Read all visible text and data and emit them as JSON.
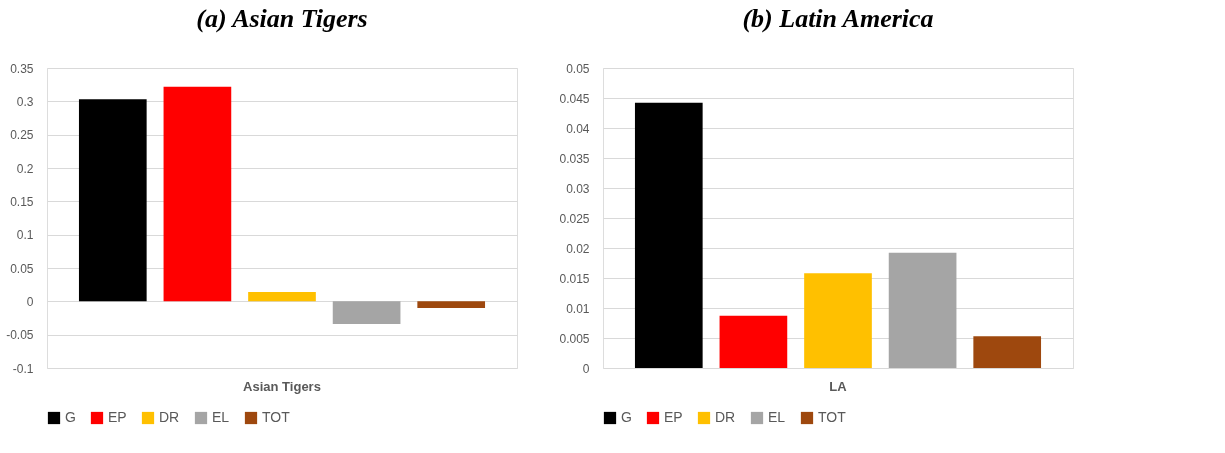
{
  "chart_data": [
    {
      "type": "bar",
      "title": "(a) Asian Tigers",
      "categories": [
        "Asian Tigers"
      ],
      "ylim": [
        -0.1,
        0.35
      ],
      "yticks": [
        -0.1,
        -0.05,
        0,
        0.05,
        0.1,
        0.15,
        0.2,
        0.25,
        0.3,
        0.35
      ],
      "grid": "y",
      "legend": "bottom",
      "series": [
        {
          "name": "G",
          "color": "#000000",
          "values": [
            0.303
          ]
        },
        {
          "name": "EP",
          "color": "#ff0000",
          "values": [
            0.322
          ]
        },
        {
          "name": "DR",
          "color": "#ffc000",
          "values": [
            0.014
          ]
        },
        {
          "name": "EL",
          "color": "#a5a5a5",
          "values": [
            -0.034
          ]
        },
        {
          "name": "TOT",
          "color": "#9e480e",
          "values": [
            -0.01
          ]
        }
      ]
    },
    {
      "type": "bar",
      "title": "(b) Latin America",
      "categories": [
        "LA"
      ],
      "ylim": [
        0,
        0.05
      ],
      "yticks": [
        0,
        0.005,
        0.01,
        0.015,
        0.02,
        0.025,
        0.03,
        0.035,
        0.04,
        0.045,
        0.05
      ],
      "grid": "y",
      "legend": "bottom",
      "series": [
        {
          "name": "G",
          "color": "#000000",
          "values": [
            0.0442
          ]
        },
        {
          "name": "EP",
          "color": "#ff0000",
          "values": [
            0.0087
          ]
        },
        {
          "name": "DR",
          "color": "#ffc000",
          "values": [
            0.0158
          ]
        },
        {
          "name": "EL",
          "color": "#a5a5a5",
          "values": [
            0.0192
          ]
        },
        {
          "name": "TOT",
          "color": "#9e480e",
          "values": [
            0.0053
          ]
        }
      ]
    }
  ]
}
